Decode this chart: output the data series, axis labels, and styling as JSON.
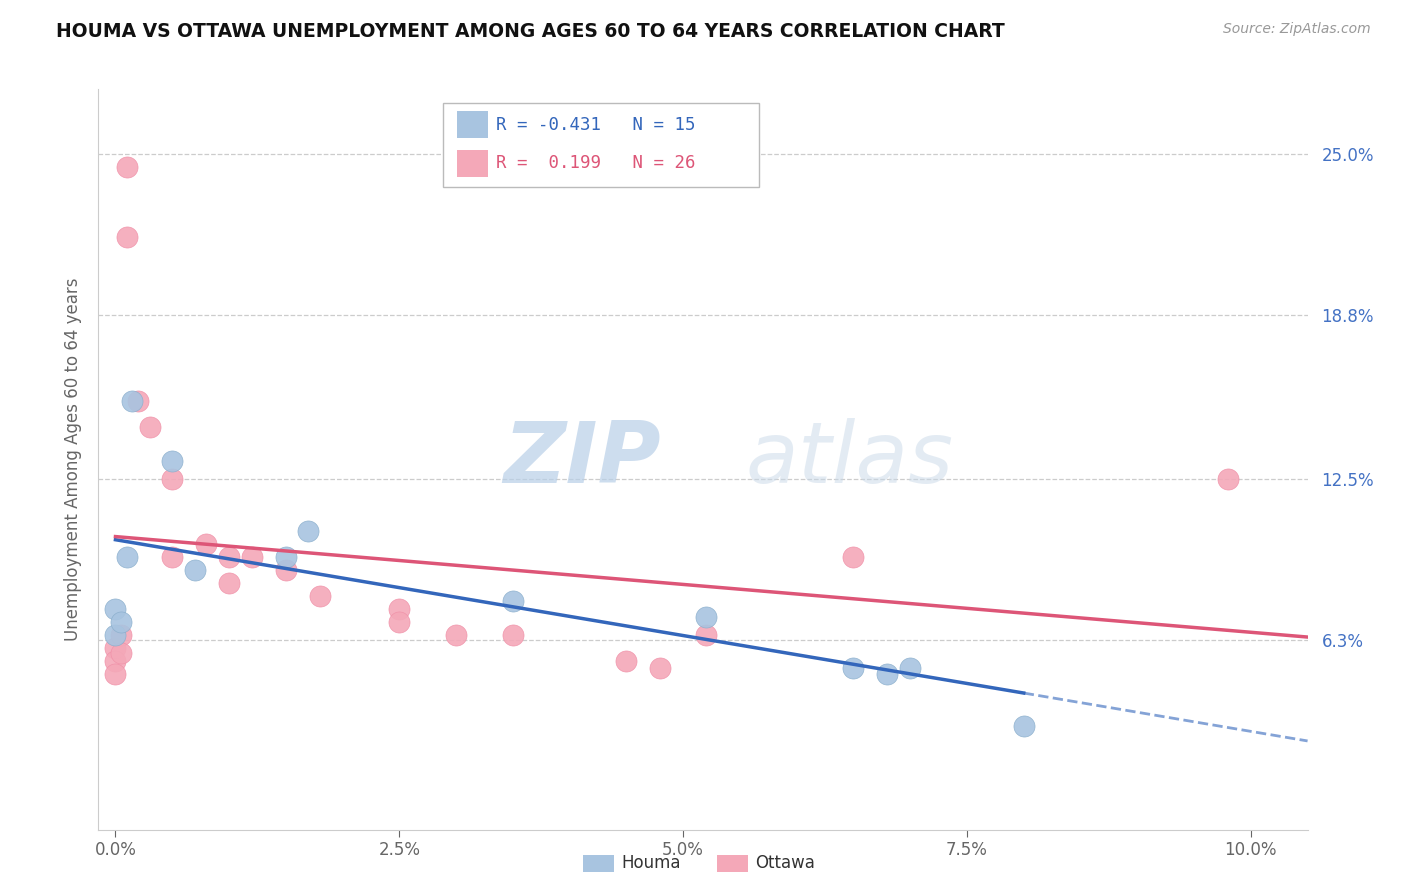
{
  "title": "HOUMA VS OTTAWA UNEMPLOYMENT AMONG AGES 60 TO 64 YEARS CORRELATION CHART",
  "source": "Source: ZipAtlas.com",
  "ylabel": "Unemployment Among Ages 60 to 64 years",
  "xlabel_ticks": [
    "0.0%",
    "2.5%",
    "5.0%",
    "7.5%",
    "10.0%"
  ],
  "xlabel_vals": [
    0.0,
    2.5,
    5.0,
    7.5,
    10.0
  ],
  "ytick_labels": [
    "6.3%",
    "12.5%",
    "18.8%",
    "25.0%"
  ],
  "ytick_vals": [
    6.3,
    12.5,
    18.8,
    25.0
  ],
  "xlim": [
    -0.15,
    10.5
  ],
  "ylim": [
    -1.0,
    27.5
  ],
  "houma_R": "-0.431",
  "houma_N": "15",
  "ottawa_R": " 0.199",
  "ottawa_N": "26",
  "houma_color": "#a8c4e0",
  "ottawa_color": "#f4a8b8",
  "houma_line_color": "#3366bb",
  "ottawa_line_color": "#dd5577",
  "watermark_zip": "ZIP",
  "watermark_atlas": "atlas",
  "houma_x": [
    0.0,
    0.0,
    0.05,
    0.1,
    0.15,
    0.5,
    0.7,
    1.5,
    1.7,
    3.5,
    5.2,
    6.5,
    6.8,
    7.0,
    8.0
  ],
  "houma_y": [
    7.5,
    6.5,
    7.0,
    9.5,
    15.5,
    13.2,
    9.0,
    9.5,
    10.5,
    7.8,
    7.2,
    5.2,
    5.0,
    5.2,
    3.0
  ],
  "ottawa_x": [
    0.0,
    0.0,
    0.0,
    0.05,
    0.05,
    0.1,
    0.1,
    0.2,
    0.3,
    0.5,
    0.5,
    0.8,
    1.0,
    1.0,
    1.2,
    1.5,
    1.8,
    2.5,
    2.5,
    3.0,
    3.5,
    4.5,
    4.8,
    5.2,
    6.5,
    9.8
  ],
  "ottawa_y": [
    6.0,
    5.5,
    5.0,
    6.5,
    5.8,
    24.5,
    21.8,
    15.5,
    14.5,
    12.5,
    9.5,
    10.0,
    9.5,
    8.5,
    9.5,
    9.0,
    8.0,
    7.5,
    7.0,
    6.5,
    6.5,
    5.5,
    5.2,
    6.5,
    9.5,
    12.5
  ],
  "background_color": "#ffffff",
  "grid_color": "#cccccc",
  "houma_line_x_start": 0.0,
  "houma_line_x_solid_end": 8.0,
  "houma_line_x_dash_end": 10.5,
  "ottawa_line_x_start": 0.0,
  "ottawa_line_x_end": 10.5
}
